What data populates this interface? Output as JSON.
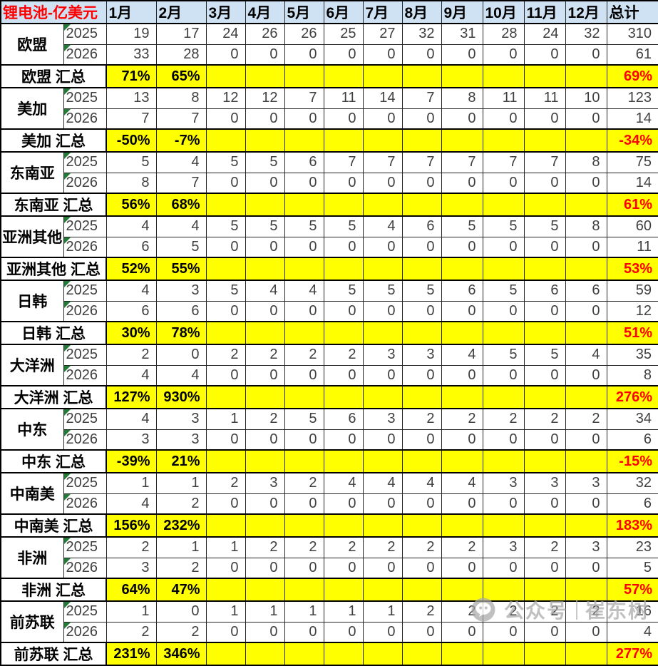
{
  "chart_data": {
    "type": "table",
    "title": "锂电池-亿美元",
    "columns": [
      "1月",
      "2月",
      "3月",
      "4月",
      "5月",
      "6月",
      "7月",
      "8月",
      "9月",
      "10月",
      "11月",
      "12月",
      "总计"
    ],
    "groups": [
      {
        "region": "欧盟",
        "rows": [
          {
            "year": "2025",
            "values": [
              19,
              17,
              24,
              26,
              26,
              25,
              27,
              32,
              31,
              28,
              24,
              32
            ],
            "total": 310
          },
          {
            "year": "2026",
            "values": [
              33,
              28,
              0,
              0,
              0,
              0,
              0,
              0,
              0,
              0,
              0,
              0
            ],
            "total": 61
          }
        ],
        "summary": {
          "label": "欧盟 汇总",
          "values": [
            "71%",
            "65%",
            "",
            "",
            "",
            "",
            "",
            "",
            "",
            "",
            "",
            ""
          ],
          "total": "69%"
        }
      },
      {
        "region": "美加",
        "rows": [
          {
            "year": "2025",
            "values": [
              13,
              8,
              12,
              12,
              7,
              11,
              14,
              7,
              8,
              11,
              11,
              10
            ],
            "total": 123
          },
          {
            "year": "2026",
            "values": [
              7,
              7,
              0,
              0,
              0,
              0,
              0,
              0,
              0,
              0,
              0,
              0
            ],
            "total": 14
          }
        ],
        "summary": {
          "label": "美加 汇总",
          "values": [
            "-50%",
            "-7%",
            "",
            "",
            "",
            "",
            "",
            "",
            "",
            "",
            "",
            ""
          ],
          "total": "-34%"
        }
      },
      {
        "region": "东南亚",
        "rows": [
          {
            "year": "2025",
            "values": [
              5,
              4,
              5,
              5,
              6,
              7,
              7,
              7,
              7,
              7,
              7,
              8
            ],
            "total": 75
          },
          {
            "year": "2026",
            "values": [
              8,
              7,
              0,
              0,
              0,
              0,
              0,
              0,
              0,
              0,
              0,
              0
            ],
            "total": 14
          }
        ],
        "summary": {
          "label": "东南亚 汇总",
          "values": [
            "56%",
            "68%",
            "",
            "",
            "",
            "",
            "",
            "",
            "",
            "",
            "",
            ""
          ],
          "total": "61%"
        }
      },
      {
        "region": "亚洲其他",
        "rows": [
          {
            "year": "2025",
            "values": [
              4,
              4,
              5,
              5,
              5,
              5,
              4,
              6,
              5,
              5,
              5,
              8
            ],
            "total": 60
          },
          {
            "year": "2026",
            "values": [
              6,
              5,
              0,
              0,
              0,
              0,
              0,
              0,
              0,
              0,
              0,
              0
            ],
            "total": 11
          }
        ],
        "summary": {
          "label": "亚洲其他 汇总",
          "values": [
            "52%",
            "55%",
            "",
            "",
            "",
            "",
            "",
            "",
            "",
            "",
            "",
            ""
          ],
          "total": "53%"
        }
      },
      {
        "region": "日韩",
        "rows": [
          {
            "year": "2025",
            "values": [
              4,
              3,
              5,
              4,
              4,
              5,
              5,
              5,
              6,
              5,
              6,
              6
            ],
            "total": 59
          },
          {
            "year": "2026",
            "values": [
              6,
              6,
              0,
              0,
              0,
              0,
              0,
              0,
              0,
              0,
              0,
              0
            ],
            "total": 12
          }
        ],
        "summary": {
          "label": "日韩 汇总",
          "values": [
            "30%",
            "78%",
            "",
            "",
            "",
            "",
            "",
            "",
            "",
            "",
            "",
            ""
          ],
          "total": "51%"
        }
      },
      {
        "region": "大洋洲",
        "rows": [
          {
            "year": "2025",
            "values": [
              2,
              0,
              2,
              2,
              2,
              2,
              3,
              3,
              4,
              5,
              5,
              4
            ],
            "total": 35
          },
          {
            "year": "2026",
            "values": [
              4,
              4,
              0,
              0,
              0,
              0,
              0,
              0,
              0,
              0,
              0,
              0
            ],
            "total": 8
          }
        ],
        "summary": {
          "label": "大洋洲 汇总",
          "values": [
            "127%",
            "930%",
            "",
            "",
            "",
            "",
            "",
            "",
            "",
            "",
            "",
            ""
          ],
          "total": "276%"
        }
      },
      {
        "region": "中东",
        "rows": [
          {
            "year": "2025",
            "values": [
              4,
              3,
              1,
              2,
              5,
              6,
              3,
              2,
              2,
              2,
              2,
              2
            ],
            "total": 34
          },
          {
            "year": "2026",
            "values": [
              3,
              3,
              0,
              0,
              0,
              0,
              0,
              0,
              0,
              0,
              0,
              0
            ],
            "total": 6
          }
        ],
        "summary": {
          "label": "中东 汇总",
          "values": [
            "-39%",
            "21%",
            "",
            "",
            "",
            "",
            "",
            "",
            "",
            "",
            "",
            ""
          ],
          "total": "-15%"
        }
      },
      {
        "region": "中南美",
        "rows": [
          {
            "year": "2025",
            "values": [
              1,
              1,
              2,
              3,
              2,
              4,
              4,
              4,
              4,
              3,
              3,
              3
            ],
            "total": 32
          },
          {
            "year": "2026",
            "values": [
              4,
              2,
              0,
              0,
              0,
              0,
              0,
              0,
              0,
              0,
              0,
              0
            ],
            "total": 6
          }
        ],
        "summary": {
          "label": "中南美 汇总",
          "values": [
            "156%",
            "232%",
            "",
            "",
            "",
            "",
            "",
            "",
            "",
            "",
            "",
            ""
          ],
          "total": "183%"
        }
      },
      {
        "region": "非洲",
        "rows": [
          {
            "year": "2025",
            "values": [
              2,
              1,
              1,
              2,
              2,
              2,
              2,
              2,
              2,
              3,
              2,
              3
            ],
            "total": 23
          },
          {
            "year": "2026",
            "values": [
              3,
              2,
              0,
              0,
              0,
              0,
              0,
              0,
              0,
              0,
              0,
              0
            ],
            "total": 5
          }
        ],
        "summary": {
          "label": "非洲 汇总",
          "values": [
            "64%",
            "47%",
            "",
            "",
            "",
            "",
            "",
            "",
            "",
            "",
            "",
            ""
          ],
          "total": "57%"
        }
      },
      {
        "region": "前苏联",
        "rows": [
          {
            "year": "2025",
            "values": [
              1,
              0,
              1,
              1,
              1,
              1,
              1,
              2,
              2,
              2,
              2,
              2
            ],
            "total": 16
          },
          {
            "year": "2026",
            "values": [
              2,
              2,
              0,
              0,
              0,
              0,
              0,
              0,
              0,
              0,
              0,
              0
            ],
            "total": 4
          }
        ],
        "summary": {
          "label": "前苏联 汇总",
          "values": [
            "231%",
            "346%",
            "",
            "",
            "",
            "",
            "",
            "",
            "",
            "",
            "",
            ""
          ],
          "total": "277%"
        }
      }
    ]
  },
  "watermark": {
    "icon": "wechat-official-account-icon",
    "platform_label": "公众号",
    "author": "崔东树"
  },
  "colors": {
    "header_bg": "#cfe2f3",
    "highlight_bg": "#ffff00",
    "title_red": "#ff0000",
    "total_percent_red": "#ff0000",
    "number_grey": "#3f3f3f",
    "flag_triangle_green": "#217a36",
    "watermark_grey": "#a8a8a8"
  }
}
